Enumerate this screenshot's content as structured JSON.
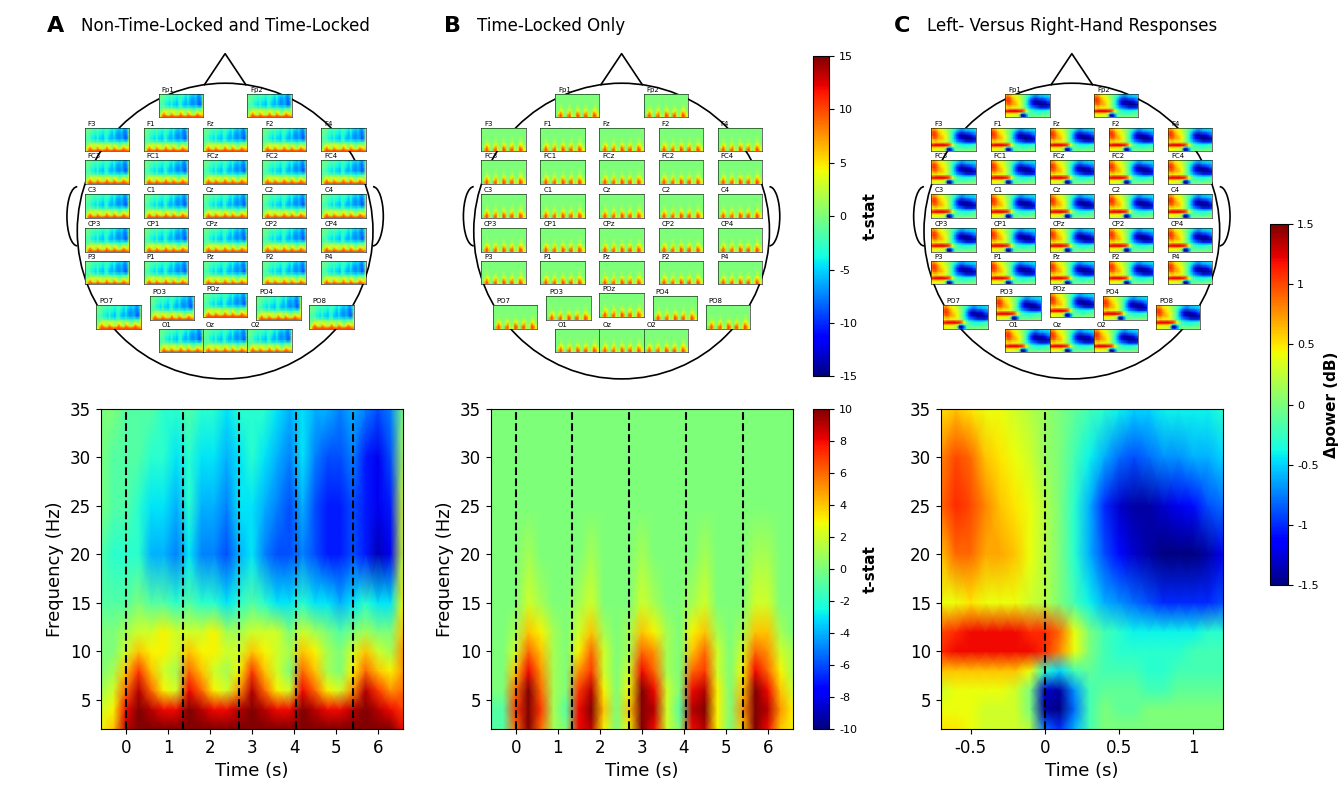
{
  "chart_data": [
    {
      "type": "heatmap",
      "panel_label": "A",
      "title": "Non-Time-Locked and Time-Locked",
      "xlabel": "Time (s)",
      "ylabel": "Frequency (Hz)",
      "xlim": [
        -0.6,
        6.6
      ],
      "ylim": [
        2,
        35
      ],
      "xticks": [
        0,
        1,
        2,
        3,
        4,
        5,
        6
      ],
      "yticks": [
        5,
        10,
        15,
        20,
        25,
        30,
        35
      ],
      "events": [
        0,
        1.35,
        2.7,
        4.05,
        5.4
      ],
      "color_range": [
        -10,
        10
      ],
      "topo_range": [
        -15,
        15
      ],
      "x": [
        -0.6,
        -0.3,
        0,
        0.3,
        0.6,
        0.9,
        1.2,
        1.5,
        1.8,
        2.1,
        2.4,
        2.7,
        3.0,
        3.3,
        3.6,
        3.9,
        4.2,
        4.5,
        4.8,
        5.1,
        5.4,
        5.7,
        6.0,
        6.3,
        6.6
      ],
      "y": [
        2,
        4,
        6,
        8,
        10,
        12,
        15,
        20,
        25,
        30,
        35
      ],
      "cells": [
        [
          3,
          4,
          9,
          10,
          10,
          10,
          10,
          10,
          10,
          10,
          10,
          10,
          10,
          10,
          10,
          10,
          10,
          10,
          10,
          10,
          10,
          10,
          10,
          10,
          8
        ],
        [
          2,
          3,
          8,
          10,
          9,
          8,
          8,
          10,
          9,
          8,
          8,
          9,
          10,
          9,
          8,
          8,
          10,
          9,
          8,
          8,
          9,
          10,
          9,
          8,
          7
        ],
        [
          1,
          2,
          6,
          9,
          6,
          3,
          2,
          8,
          6,
          3,
          2,
          5,
          9,
          6,
          3,
          2,
          8,
          6,
          3,
          2,
          5,
          9,
          7,
          5,
          6
        ],
        [
          0,
          1,
          4,
          7,
          4,
          2,
          1,
          6,
          4,
          2,
          1,
          3,
          7,
          4,
          2,
          0,
          6,
          4,
          1,
          0,
          3,
          6,
          4,
          3,
          5
        ],
        [
          0,
          0,
          2,
          4,
          3,
          3,
          2,
          4,
          3,
          3,
          2,
          2,
          4,
          3,
          2,
          1,
          4,
          3,
          1,
          0,
          2,
          4,
          2,
          1,
          5
        ],
        [
          0,
          0,
          1,
          2,
          2,
          3,
          2,
          2,
          2,
          3,
          1,
          1,
          2,
          2,
          2,
          0,
          2,
          1,
          0,
          -1,
          0,
          1,
          0,
          0,
          4
        ],
        [
          -1,
          -1,
          -1,
          0,
          -1,
          -1,
          -2,
          -1,
          -2,
          -2,
          -3,
          -2,
          -1,
          -2,
          -3,
          -3,
          -2,
          -3,
          -3,
          -4,
          -3,
          -2,
          -3,
          -3,
          3
        ],
        [
          -1,
          -2,
          -2,
          -2,
          -4,
          -4,
          -5,
          -3,
          -5,
          -5,
          -6,
          -4,
          -3,
          -5,
          -6,
          -6,
          -5,
          -6,
          -7,
          -7,
          -6,
          -7,
          -9,
          -8,
          2
        ],
        [
          0,
          -1,
          -1,
          -2,
          -3,
          -3,
          -4,
          -2,
          -4,
          -4,
          -5,
          -3,
          -3,
          -4,
          -5,
          -6,
          -4,
          -6,
          -7,
          -7,
          -6,
          -7,
          -8,
          -7,
          2
        ],
        [
          0,
          -1,
          -1,
          -1,
          -2,
          -2,
          -3,
          -2,
          -3,
          -3,
          -4,
          -3,
          -2,
          -3,
          -4,
          -5,
          -3,
          -5,
          -6,
          -6,
          -5,
          -7,
          -8,
          -6,
          1
        ],
        [
          0,
          0,
          -1,
          -1,
          -1,
          -2,
          -2,
          -1,
          -2,
          -2,
          -3,
          -2,
          -2,
          -2,
          -3,
          -4,
          -3,
          -4,
          -4,
          -5,
          -4,
          -5,
          -6,
          -5,
          0
        ]
      ]
    },
    {
      "type": "heatmap",
      "panel_label": "B",
      "title": "Time-Locked Only",
      "xlabel": "Time (s)",
      "ylabel": "Frequency (Hz)",
      "xlim": [
        -0.6,
        6.6
      ],
      "ylim": [
        2,
        35
      ],
      "xticks": [
        0,
        1,
        2,
        3,
        4,
        5,
        6
      ],
      "yticks": [
        5,
        10,
        15,
        20,
        25,
        30,
        35
      ],
      "events": [
        0,
        1.35,
        2.7,
        4.05,
        5.4
      ],
      "color_range": [
        -10,
        10
      ],
      "topo_range": [
        -15,
        15
      ],
      "x": [
        -0.6,
        -0.3,
        0,
        0.3,
        0.6,
        0.9,
        1.2,
        1.5,
        1.8,
        2.1,
        2.4,
        2.7,
        3.0,
        3.3,
        3.6,
        3.9,
        4.2,
        4.5,
        4.8,
        5.1,
        5.4,
        5.7,
        6.0,
        6.3,
        6.6
      ],
      "y": [
        2,
        4,
        6,
        8,
        10,
        12,
        15,
        20,
        25,
        30,
        35
      ],
      "cells": [
        [
          -1,
          -1,
          6,
          10,
          6,
          1,
          0,
          8,
          9,
          3,
          0,
          3,
          10,
          8,
          2,
          0,
          8,
          9,
          3,
          0,
          4,
          10,
          8,
          4,
          3
        ],
        [
          -1,
          -1,
          7,
          10,
          7,
          1,
          -1,
          8,
          10,
          4,
          0,
          4,
          10,
          9,
          2,
          -1,
          9,
          10,
          3,
          0,
          5,
          10,
          9,
          5,
          3
        ],
        [
          0,
          0,
          6,
          10,
          6,
          1,
          0,
          7,
          9,
          3,
          0,
          3,
          10,
          8,
          2,
          0,
          8,
          9,
          3,
          0,
          4,
          10,
          8,
          4,
          2
        ],
        [
          0,
          0,
          4,
          8,
          5,
          1,
          0,
          5,
          7,
          2,
          0,
          2,
          8,
          6,
          1,
          0,
          6,
          7,
          2,
          0,
          3,
          8,
          6,
          3,
          1
        ],
        [
          0,
          0,
          2,
          6,
          4,
          1,
          0,
          3,
          6,
          2,
          0,
          1,
          6,
          5,
          1,
          0,
          4,
          6,
          2,
          0,
          2,
          6,
          5,
          2,
          1
        ],
        [
          0,
          0,
          1,
          4,
          3,
          1,
          0,
          2,
          4,
          1,
          0,
          1,
          4,
          3,
          1,
          0,
          3,
          4,
          1,
          0,
          1,
          4,
          4,
          1,
          0
        ],
        [
          0,
          0,
          0,
          2,
          1,
          0,
          0,
          1,
          2,
          0,
          0,
          0,
          2,
          1,
          0,
          0,
          1,
          2,
          0,
          0,
          0,
          2,
          2,
          0,
          0
        ],
        [
          0,
          0,
          0,
          1,
          0,
          0,
          0,
          0,
          1,
          0,
          0,
          0,
          1,
          0,
          0,
          0,
          0,
          1,
          0,
          0,
          0,
          1,
          1,
          0,
          0
        ],
        [
          0,
          0,
          0,
          0,
          0,
          0,
          0,
          0,
          0,
          0,
          0,
          0,
          0,
          0,
          0,
          0,
          0,
          0,
          0,
          0,
          0,
          0,
          0,
          0,
          0
        ],
        [
          0,
          0,
          0,
          0,
          0,
          0,
          0,
          0,
          0,
          0,
          0,
          0,
          0,
          0,
          0,
          0,
          0,
          0,
          0,
          0,
          0,
          0,
          0,
          0,
          0
        ],
        [
          0,
          0,
          0,
          0,
          0,
          0,
          0,
          0,
          0,
          0,
          0,
          0,
          0,
          0,
          0,
          0,
          0,
          0,
          0,
          0,
          0,
          0,
          0,
          0,
          0
        ]
      ]
    },
    {
      "type": "heatmap",
      "panel_label": "C",
      "title": "Left- Versus Right-Hand Responses",
      "xlabel": "Time (s)",
      "xlim": [
        -0.7,
        1.2
      ],
      "ylim": [
        2,
        35
      ],
      "xticks": [
        -0.5,
        0,
        0.5,
        1
      ],
      "yticks": [
        5,
        10,
        15,
        20,
        25,
        30,
        35
      ],
      "events": [
        0
      ],
      "color_range": [
        -1.5,
        1.5
      ],
      "topo_range": [
        -1.5,
        1.5
      ],
      "x": [
        -0.7,
        -0.6,
        -0.5,
        -0.4,
        -0.3,
        -0.2,
        -0.1,
        0,
        0.1,
        0.2,
        0.3,
        0.4,
        0.5,
        0.6,
        0.7,
        0.8,
        0.9,
        1.0,
        1.1,
        1.2
      ],
      "y": [
        2,
        4,
        6,
        8,
        10,
        12,
        15,
        20,
        25,
        30,
        35
      ],
      "cells": [
        [
          0.5,
          0.5,
          0.4,
          0.3,
          0.3,
          0.3,
          0.2,
          -0.8,
          -1.0,
          -0.6,
          -0.2,
          0,
          0,
          0,
          0,
          0,
          0,
          0,
          0,
          0
        ],
        [
          0.4,
          0.4,
          0.4,
          0.3,
          0.3,
          0.3,
          0,
          -1.4,
          -1.5,
          -0.8,
          -0.2,
          0,
          -0.1,
          -0.1,
          0,
          0,
          0,
          0,
          0,
          0
        ],
        [
          0.3,
          0.4,
          0.4,
          0.4,
          0.4,
          0.3,
          0,
          -1.3,
          -1.4,
          -0.7,
          -0.2,
          -0.1,
          -0.1,
          -0.1,
          -0.2,
          -0.2,
          -0.1,
          -0.1,
          -0.1,
          -0.1
        ],
        [
          0.6,
          0.6,
          0.6,
          0.6,
          0.6,
          0.6,
          0.4,
          -0.3,
          -0.5,
          -0.2,
          -0.1,
          -0.2,
          -0.2,
          -0.2,
          -0.3,
          -0.3,
          -0.2,
          -0.2,
          -0.2,
          -0.2
        ],
        [
          1.1,
          1.2,
          1.2,
          1.2,
          1.2,
          1.2,
          1.2,
          1.1,
          0.8,
          0.4,
          0,
          -0.2,
          -0.3,
          -0.3,
          -0.3,
          -0.3,
          -0.3,
          -0.2,
          -0.2,
          -0.2
        ],
        [
          1.0,
          1.1,
          1.2,
          1.2,
          1.2,
          1.2,
          1.1,
          1.1,
          0.9,
          0.4,
          0,
          -0.2,
          -0.3,
          -0.4,
          -0.4,
          -0.4,
          -0.4,
          -0.4,
          -0.3,
          -0.3
        ],
        [
          0.4,
          0.4,
          0.5,
          0.4,
          0.4,
          0.4,
          0.3,
          0.2,
          0,
          -0.2,
          -0.4,
          -0.6,
          -0.7,
          -0.8,
          -0.9,
          -1.0,
          -1.0,
          -1.0,
          -1.0,
          -0.9
        ],
        [
          0.6,
          0.9,
          0.9,
          0.7,
          0.7,
          0.6,
          0.4,
          0.2,
          0,
          -0.3,
          -0.6,
          -0.9,
          -1.1,
          -1.3,
          -1.4,
          -1.5,
          -1.5,
          -1.5,
          -1.4,
          -1.2
        ],
        [
          0.9,
          1.1,
          1.0,
          0.8,
          0.6,
          0.5,
          0.4,
          0.2,
          0,
          -0.3,
          -0.6,
          -1.0,
          -1.3,
          -1.4,
          -1.4,
          -1.3,
          -1.2,
          -1.1,
          -0.9,
          -0.8
        ],
        [
          0.8,
          1.0,
          0.9,
          0.6,
          0.5,
          0.4,
          0.3,
          0.1,
          0,
          -0.2,
          -0.4,
          -0.6,
          -0.8,
          -0.9,
          -0.8,
          -0.7,
          -0.7,
          -0.6,
          -0.6,
          -0.5
        ],
        [
          0.5,
          0.6,
          0.5,
          0.4,
          0.4,
          0.3,
          0.2,
          0.1,
          0,
          -0.1,
          -0.2,
          -0.3,
          -0.4,
          -0.5,
          -0.5,
          -0.4,
          -0.4,
          -0.4,
          -0.4,
          -0.3
        ]
      ]
    }
  ],
  "electrodes": [
    [
      "Fp1",
      "Fp2"
    ],
    [
      "F3",
      "F1",
      "Fz",
      "F2",
      "F4"
    ],
    [
      "FC3",
      "FC1",
      "FCz",
      "FC2",
      "FC4"
    ],
    [
      "C3",
      "C1",
      "Cz",
      "C2",
      "C4"
    ],
    [
      "CP3",
      "CP1",
      "CPz",
      "CP2",
      "CP4"
    ],
    [
      "P3",
      "P1",
      "Pz",
      "P2",
      "P4"
    ],
    [
      "PO7",
      "PO3",
      "POz",
      "PO4",
      "PO8"
    ],
    [
      "O1",
      "Oz",
      "O2"
    ]
  ],
  "colorbars": [
    {
      "range": [
        -15,
        15
      ],
      "ticks": [
        -15,
        -10,
        -5,
        0,
        5,
        10,
        15
      ],
      "label": "t-stat"
    },
    {
      "range": [
        -10,
        10
      ],
      "ticks": [
        -10,
        -8,
        -6,
        -4,
        -2,
        0,
        2,
        4,
        6,
        8,
        10
      ],
      "label": "t-stat"
    },
    {
      "range": [
        -1.5,
        1.5
      ],
      "ticks": [
        -1.5,
        -1,
        -0.5,
        0,
        0.5,
        1,
        1.5
      ],
      "label": "Δpower (dB)"
    }
  ]
}
